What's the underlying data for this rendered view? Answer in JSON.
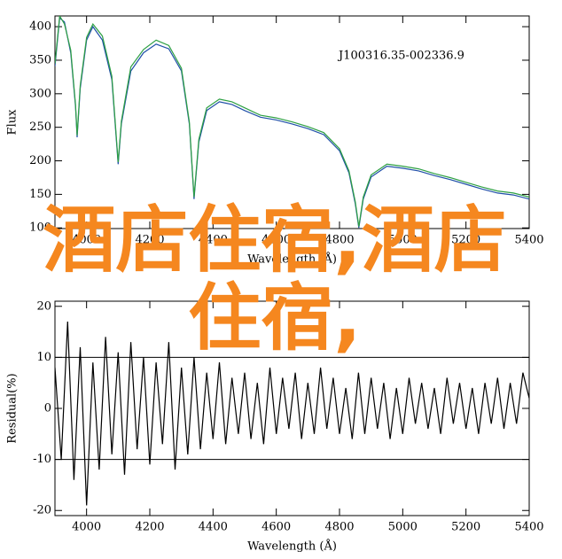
{
  "chart_data": [
    {
      "type": "line",
      "annotation": "J100316.35-002336.9",
      "xlabel": "Wavelength (Å)",
      "ylabel": "Flux",
      "x": [
        3900,
        3915,
        3930,
        3950,
        3965,
        3970,
        3980,
        4000,
        4020,
        4050,
        4080,
        4100,
        4110,
        4140,
        4180,
        4220,
        4260,
        4300,
        4325,
        4340,
        4355,
        4380,
        4420,
        4460,
        4500,
        4550,
        4600,
        4650,
        4700,
        4750,
        4800,
        4830,
        4850,
        4861,
        4875,
        4900,
        4950,
        5000,
        5050,
        5100,
        5150,
        5200,
        5250,
        5300,
        5350,
        5400
      ],
      "series": [
        {
          "color": "#1f4fa8",
          "values": [
            341,
            413,
            407,
            361,
            281,
            235,
            308,
            380,
            400,
            380,
            321,
            195,
            255,
            334,
            361,
            374,
            367,
            334,
            255,
            143,
            228,
            275,
            288,
            284,
            275,
            265,
            261,
            255,
            248,
            239,
            215,
            182,
            136,
            100,
            143,
            176,
            192,
            189,
            185,
            178,
            172,
            165,
            158,
            152,
            149,
            143
          ]
        },
        {
          "color": "#2ea043",
          "values": [
            345,
            416,
            404,
            365,
            284,
            238,
            312,
            384,
            404,
            386,
            326,
            198,
            259,
            340,
            366,
            380,
            372,
            338,
            258,
            146,
            232,
            279,
            292,
            288,
            279,
            268,
            264,
            258,
            251,
            242,
            218,
            185,
            139,
            102,
            146,
            179,
            195,
            192,
            188,
            181,
            175,
            168,
            161,
            155,
            152,
            146
          ]
        }
      ],
      "xlim": [
        3900,
        5400
      ],
      "xticks": [
        4000,
        4200,
        4400,
        4600,
        4800,
        5000,
        5200,
        5400
      ],
      "ylim": [
        99,
        416
      ],
      "yticks": [
        100,
        150,
        200,
        250,
        300,
        350,
        400
      ]
    },
    {
      "type": "line",
      "xlabel": "Wavelength (Å)",
      "ylabel": "Residual(%)",
      "x": [
        3900,
        3920,
        3940,
        3960,
        3980,
        4000,
        4020,
        4040,
        4060,
        4080,
        4100,
        4120,
        4140,
        4160,
        4180,
        4200,
        4220,
        4240,
        4260,
        4280,
        4300,
        4320,
        4340,
        4360,
        4380,
        4400,
        4420,
        4440,
        4460,
        4480,
        4500,
        4520,
        4540,
        4560,
        4580,
        4600,
        4620,
        4640,
        4660,
        4680,
        4700,
        4720,
        4740,
        4760,
        4780,
        4800,
        4820,
        4840,
        4860,
        4880,
        4900,
        4920,
        4940,
        4960,
        4980,
        5000,
        5020,
        5040,
        5060,
        5080,
        5100,
        5120,
        5140,
        5160,
        5180,
        5200,
        5220,
        5240,
        5260,
        5280,
        5300,
        5320,
        5340,
        5360,
        5380,
        5400
      ],
      "series": [
        {
          "color": "#000000",
          "values": [
            8,
            -10,
            17,
            -14,
            12,
            -19,
            9,
            -12,
            14,
            -9,
            11,
            -13,
            13,
            -8,
            10,
            -11,
            9,
            -7,
            13,
            -12,
            8,
            -9,
            10,
            -8,
            7,
            -6,
            9,
            -7,
            6,
            -5,
            7,
            -6,
            5,
            -7,
            8,
            -5,
            6,
            -4,
            7,
            -6,
            5,
            -5,
            8,
            -4,
            6,
            -5,
            4,
            -6,
            7,
            -5,
            6,
            -4,
            5,
            -6,
            4,
            -5,
            6,
            -3,
            5,
            -4,
            4,
            -5,
            6,
            -3,
            5,
            -4,
            4,
            -5,
            5,
            -3,
            6,
            -4,
            5,
            -3,
            7,
            2
          ]
        }
      ],
      "reference_lines": [
        10,
        -10
      ],
      "xlim": [
        3900,
        5400
      ],
      "xticks": [
        4000,
        4200,
        4400,
        4600,
        4800,
        5000,
        5200,
        5400
      ],
      "ylim": [
        -21,
        21
      ],
      "yticks": [
        20,
        10,
        0,
        -10,
        -20
      ]
    }
  ],
  "overlay_text": "酒店住宿,酒店住宿,"
}
